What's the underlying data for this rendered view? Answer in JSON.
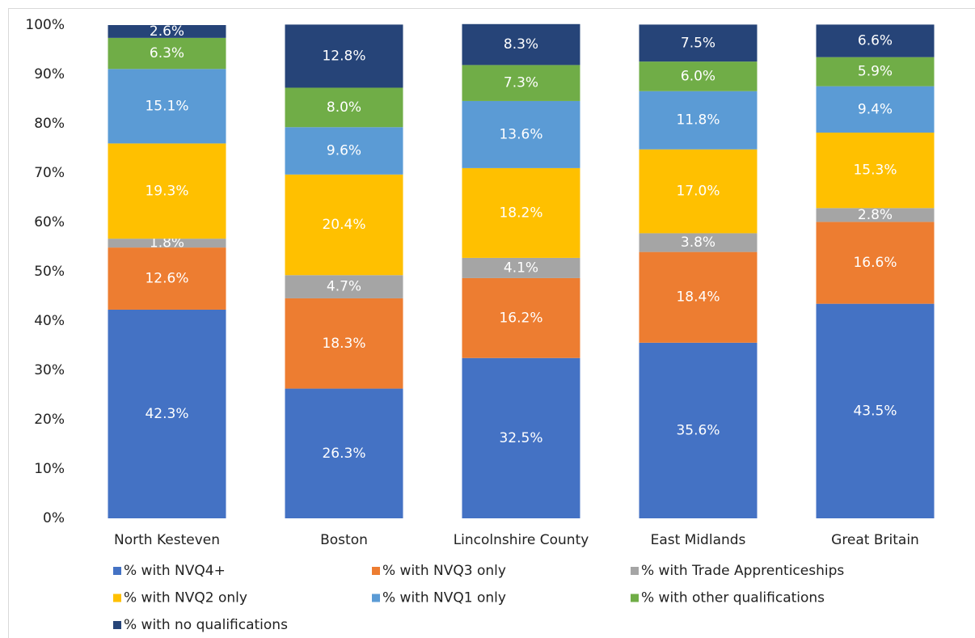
{
  "chart_data": {
    "type": "stacked_bar",
    "categories": [
      "North Kesteven",
      "Boston",
      "Lincolnshire County",
      "East Midlands",
      "Great Britain"
    ],
    "series": [
      {
        "name": "% with NVQ4+",
        "color": "#4472c4",
        "values": [
          42.3,
          26.3,
          32.5,
          35.6,
          43.5
        ],
        "value_labels": [
          "42.3%",
          "26.3%",
          "32.5%",
          "35.6%",
          "43.5%"
        ]
      },
      {
        "name": "% with NVQ3 only",
        "color": "#ed7d31",
        "values": [
          12.6,
          18.3,
          16.2,
          18.4,
          16.6
        ],
        "value_labels": [
          "12.6%",
          "18.3%",
          "16.2%",
          "18.4%",
          "16.6%"
        ]
      },
      {
        "name": "% with Trade Apprenticeships",
        "color": "#a5a5a5",
        "values": [
          1.8,
          4.7,
          4.1,
          3.8,
          2.8
        ],
        "value_labels": [
          "1.8%",
          "4.7%",
          "4.1%",
          "3.8%",
          "2.8%"
        ]
      },
      {
        "name": "% with NVQ2 only",
        "color": "#ffc000",
        "values": [
          19.3,
          20.4,
          18.2,
          17.0,
          15.3
        ],
        "value_labels": [
          "19.3%",
          "20.4%",
          "18.2%",
          "17.0%",
          "15.3%"
        ]
      },
      {
        "name": "% with NVQ1 only",
        "color": "#5b9bd5",
        "values": [
          15.1,
          9.6,
          13.6,
          11.8,
          9.4
        ],
        "value_labels": [
          "15.1%",
          "9.6%",
          "13.6%",
          "11.8%",
          "9.4%"
        ]
      },
      {
        "name": "% with other qualifications",
        "color": "#70ad47",
        "values": [
          6.3,
          8.0,
          7.3,
          6.0,
          5.9
        ],
        "value_labels": [
          "6.3%",
          "8.0%",
          "7.3%",
          "6.0%",
          "5.9%"
        ]
      },
      {
        "name": "% with no qualifications",
        "color": "#264478",
        "values": [
          2.6,
          12.8,
          8.3,
          7.5,
          6.6
        ],
        "value_labels": [
          "2.6%",
          "12.8%",
          "8.3%",
          "7.5%",
          "6.6%"
        ]
      }
    ],
    "ylim": [
      0,
      100
    ],
    "yticks": [
      {
        "value": 0,
        "label": "0%"
      },
      {
        "value": 10,
        "label": "10%"
      },
      {
        "value": 20,
        "label": "20%"
      },
      {
        "value": 30,
        "label": "30%"
      },
      {
        "value": 40,
        "label": "40%"
      },
      {
        "value": 50,
        "label": "50%"
      },
      {
        "value": 60,
        "label": "60%"
      },
      {
        "value": 70,
        "label": "70%"
      },
      {
        "value": 80,
        "label": "80%"
      },
      {
        "value": 90,
        "label": "90%"
      },
      {
        "value": 100,
        "label": "100%"
      }
    ],
    "grid": false
  }
}
